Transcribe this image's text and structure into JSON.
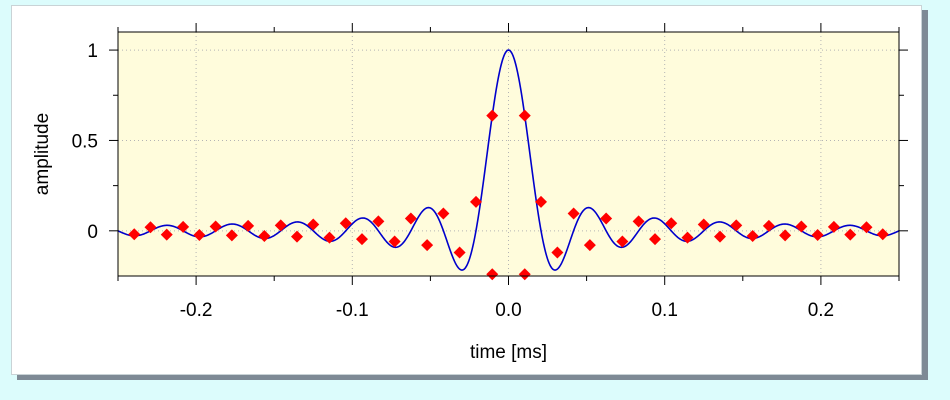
{
  "chart_data": {
    "type": "line",
    "title": "",
    "xlabel": "time [ms]",
    "ylabel": "amplitude",
    "xlim": [
      -0.25,
      0.25
    ],
    "ylim": [
      -0.25,
      1.1
    ],
    "xticks": [
      -0.2,
      -0.1,
      0.0,
      0.1,
      0.2
    ],
    "xtick_labels": [
      "-0.2",
      "-0.1",
      "0.0",
      "0.1",
      "0.2"
    ],
    "yticks": [
      0,
      0.5,
      1
    ],
    "ytick_labels": [
      "0",
      "0.5",
      "1"
    ],
    "grid": true,
    "colors": {
      "background": "#fffcdc",
      "line": "#0000cc",
      "marker": "#ff0000",
      "grid": "#b4b4b4"
    },
    "series": [
      {
        "type": "line",
        "function": "sinc",
        "sample_period_ms": 0.0208333,
        "x_range": [
          -0.25,
          0.25
        ]
      },
      {
        "type": "scatter",
        "marker": "diamond",
        "x": [
          -0.2396,
          -0.2292,
          -0.2188,
          -0.2083,
          -0.1979,
          -0.1875,
          -0.1771,
          -0.1667,
          -0.1563,
          -0.1458,
          -0.1354,
          -0.125,
          -0.1146,
          -0.1042,
          -0.0938,
          -0.0833,
          -0.0729,
          -0.0625,
          -0.0521,
          -0.0417,
          -0.0313,
          -0.0208,
          -0.0104,
          0.0104,
          0.0208,
          0.0313,
          0.0417,
          0.0521,
          0.0625,
          0.0729,
          0.0833,
          0.0938,
          0.1042,
          0.1146,
          0.125,
          0.1354,
          0.1458,
          0.1563,
          0.1667,
          0.1771,
          0.1875,
          0.1979,
          0.2083,
          0.2188,
          0.2292,
          0.2396
        ],
        "y": [
          -0.019,
          0.02,
          -0.021,
          0.022,
          -0.023,
          0.024,
          -0.025,
          0.027,
          -0.029,
          0.03,
          -0.032,
          0.035,
          -0.038,
          0.042,
          -0.046,
          0.052,
          -0.059,
          0.068,
          -0.079,
          0.096,
          -0.12,
          0.16,
          -0.24,
          -0.24,
          0.16,
          -0.12,
          0.096,
          -0.079,
          0.068,
          -0.059,
          0.052,
          -0.046,
          0.042,
          -0.038,
          0.035,
          -0.032,
          0.03,
          -0.029,
          0.027,
          -0.025,
          0.024,
          -0.023,
          0.022,
          -0.021,
          0.02,
          -0.019
        ]
      },
      {
        "type": "scatter",
        "marker": "diamond",
        "x": [
          -0.0104,
          0.0104
        ],
        "y": [
          0.637,
          0.637
        ]
      }
    ]
  }
}
